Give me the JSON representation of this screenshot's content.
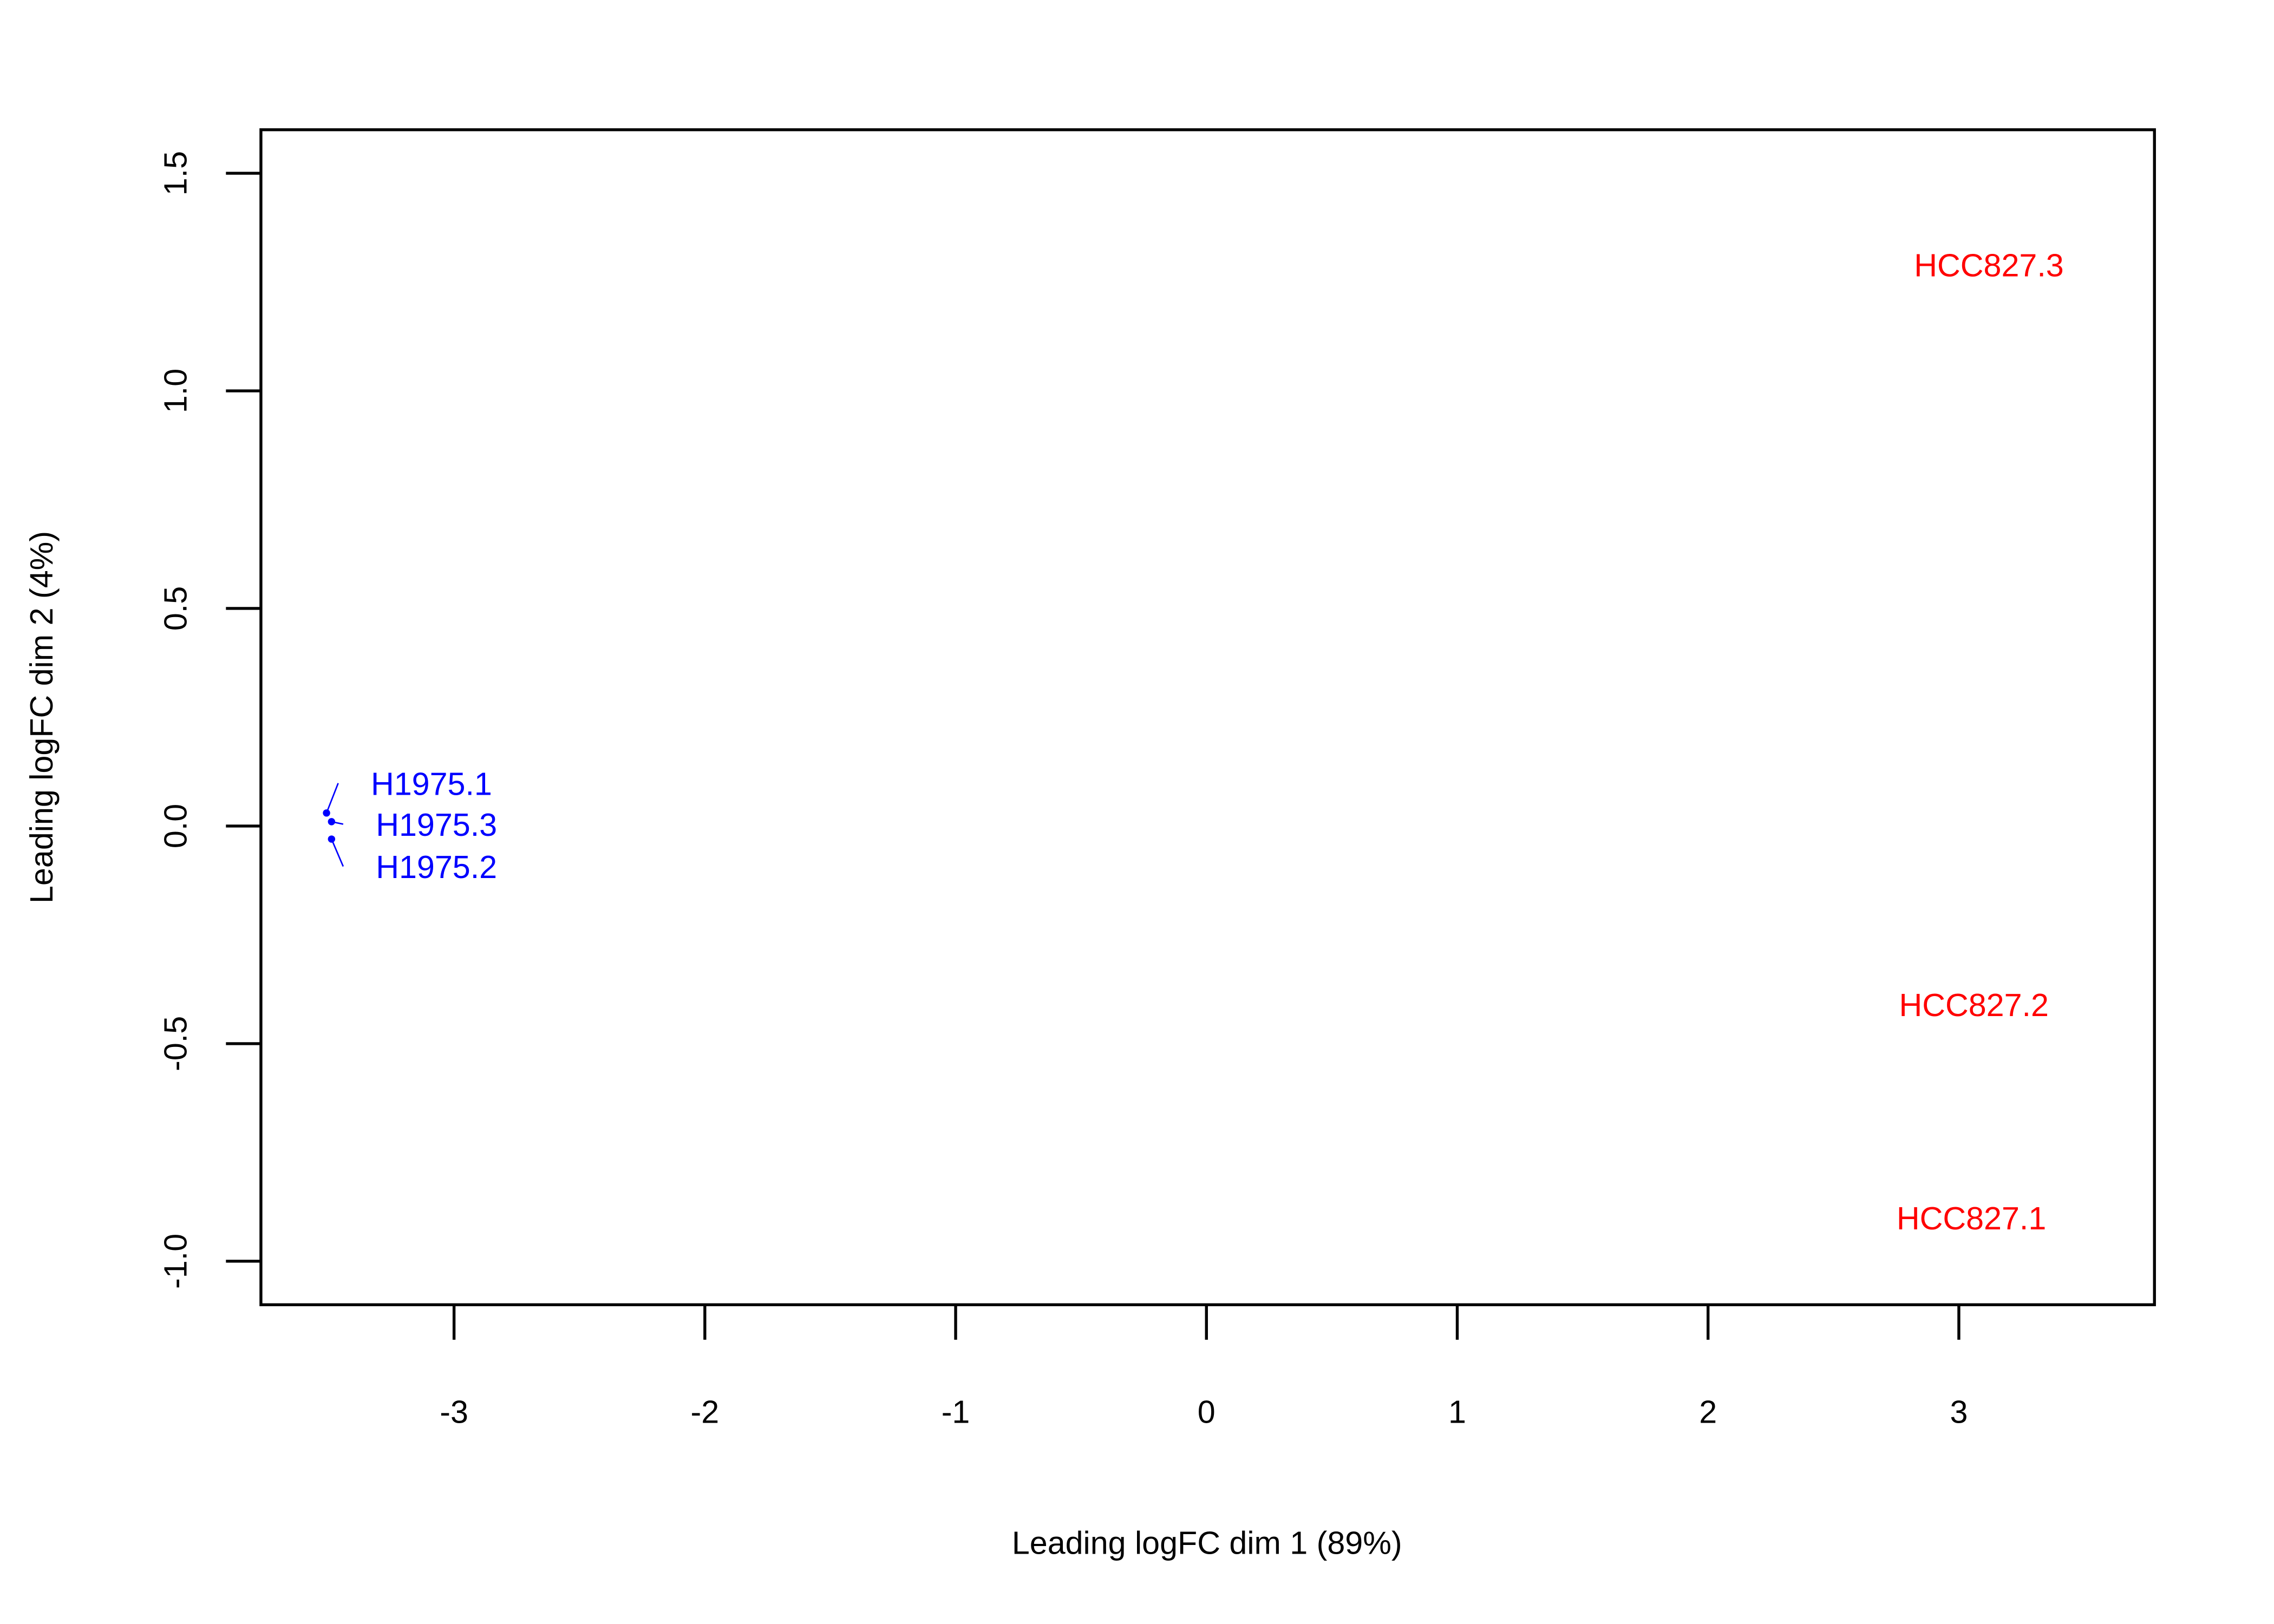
{
  "chart_data": {
    "type": "scatter",
    "title": "",
    "xlabel": "Leading logFC dim 1 (89%)",
    "ylabel": "Leading logFC dim 2 (4%)",
    "xlim": [
      -3.77,
      3.78
    ],
    "ylim": [
      -1.1,
      1.6
    ],
    "xticks": [
      -3,
      -2,
      -1,
      0,
      1,
      2,
      3
    ],
    "yticks": [
      -1.0,
      -0.5,
      0.0,
      0.5,
      1.0,
      1.5
    ],
    "xtick_labels": [
      "-3",
      "-2",
      "-1",
      "0",
      "1",
      "2",
      "3"
    ],
    "ytick_labels": [
      "-1.0",
      "-0.5",
      "0.0",
      "0.5",
      "1.0",
      "1.5"
    ],
    "grid": false,
    "marker": "text-label",
    "points": [
      {
        "label": "H1975.1",
        "x": -3.09,
        "y": 0.03,
        "color": "#0000ff"
      },
      {
        "label": "H1975.3",
        "x": -3.07,
        "y": 0.01,
        "color": "#0000ff"
      },
      {
        "label": "H1975.2",
        "x": -3.07,
        "y": -0.03,
        "color": "#0000ff"
      },
      {
        "label": "HCC827.3",
        "x": 3.12,
        "y": 1.29,
        "color": "#ff0000"
      },
      {
        "label": "HCC827.2",
        "x": 3.06,
        "y": -0.41,
        "color": "#ff0000"
      },
      {
        "label": "HCC827.1",
        "x": 3.05,
        "y": -0.9,
        "color": "#ff0000"
      }
    ]
  }
}
